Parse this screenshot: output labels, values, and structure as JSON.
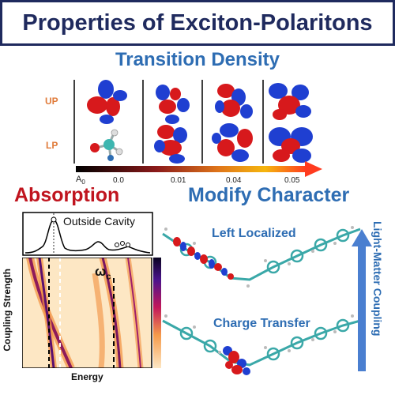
{
  "title": "Properties of Exciton-Polaritons",
  "transition_density": {
    "heading": "Transition Density",
    "row_labels": [
      "UP",
      "LP"
    ],
    "scale_symbol_base": "A",
    "scale_symbol_sub": "0",
    "scale_ticks": [
      "0.0",
      "0.01",
      "0.04",
      "0.05"
    ],
    "colors": {
      "positive": "#d7191c",
      "negative": "#1f3fd1"
    }
  },
  "absorption": {
    "heading": "Absorption",
    "top_panel_label": "Outside Cavity",
    "cavity_mode_label": "ω",
    "cavity_mode_sub": "c",
    "x_axis_label": "Energy",
    "y_axis_label": "Coupling Strength"
  },
  "modify_character": {
    "heading": "Modify Character",
    "upper_label": "Left Localized",
    "lower_label": "Charge Transfer",
    "arrow_label": "Light-Matter Coupling"
  },
  "colors": {
    "title": "#1f2a5e",
    "accent_blue": "#2e6db3",
    "accent_red": "#c0141e",
    "accent_orange": "#e07b3a"
  }
}
